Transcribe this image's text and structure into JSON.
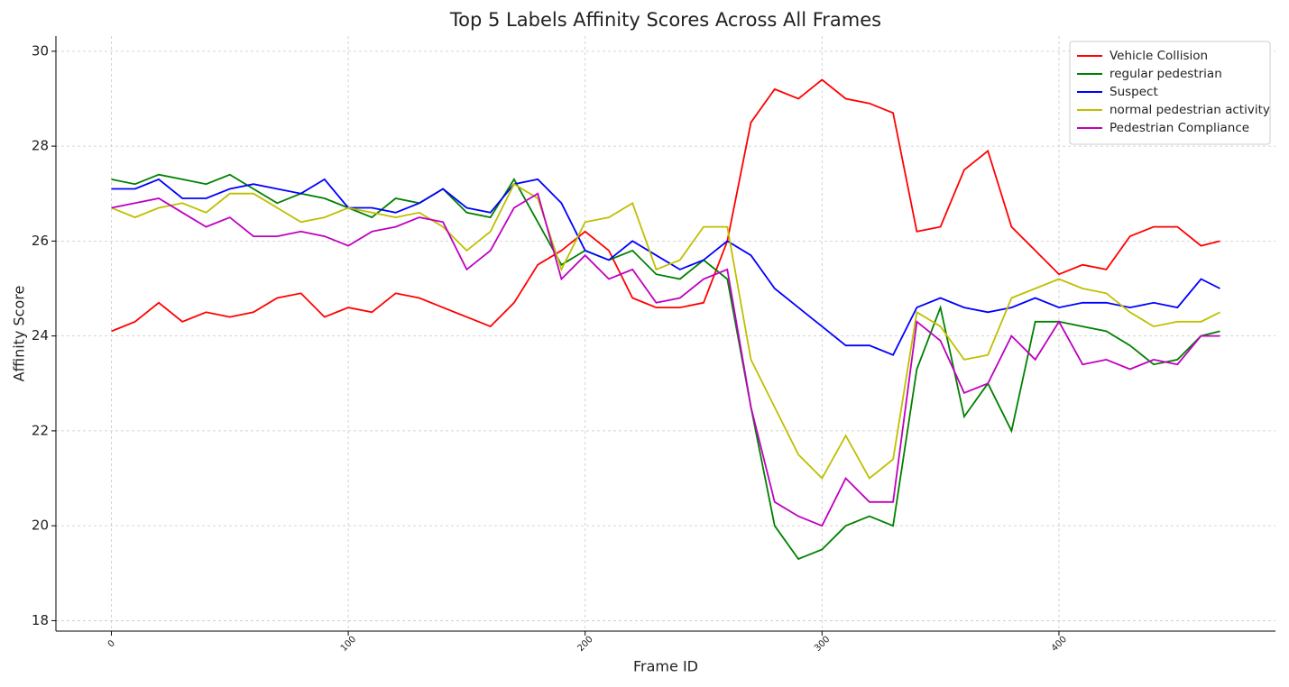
{
  "chart_data": {
    "type": "line",
    "title": "Top 5 Labels Affinity Scores Across All Frames",
    "x_label": "Frame ID",
    "y_label": "Affinity Score",
    "x": [
      0,
      10,
      20,
      30,
      40,
      50,
      60,
      70,
      80,
      90,
      100,
      110,
      120,
      130,
      140,
      150,
      160,
      170,
      180,
      190,
      200,
      210,
      220,
      230,
      240,
      250,
      260,
      270,
      280,
      290,
      300,
      310,
      320,
      330,
      340,
      350,
      360,
      370,
      380,
      390,
      400,
      410,
      420,
      430,
      440,
      450,
      460,
      468
    ],
    "series": [
      {
        "name": "Vehicle Collision",
        "color": "#ff0000",
        "values": [
          24.1,
          24.3,
          24.7,
          24.3,
          24.5,
          24.4,
          24.5,
          24.8,
          24.9,
          24.4,
          24.6,
          24.5,
          24.9,
          24.8,
          24.6,
          24.4,
          24.2,
          24.7,
          25.5,
          25.8,
          26.2,
          25.8,
          24.8,
          24.6,
          24.6,
          24.7,
          26.0,
          28.5,
          29.2,
          29.0,
          29.4,
          29.0,
          28.9,
          28.7,
          26.2,
          26.3,
          27.5,
          27.9,
          26.3,
          25.8,
          25.3,
          25.5,
          25.4,
          26.1,
          26.3,
          26.3,
          25.9,
          26.0
        ]
      },
      {
        "name": "regular pedestrian",
        "color": "#008000",
        "values": [
          27.3,
          27.2,
          27.4,
          27.3,
          27.2,
          27.4,
          27.1,
          26.8,
          27.0,
          26.9,
          26.7,
          26.5,
          26.9,
          26.8,
          27.1,
          26.6,
          26.5,
          27.3,
          26.4,
          25.5,
          25.8,
          25.6,
          25.8,
          25.3,
          25.2,
          25.6,
          25.2,
          22.5,
          20.0,
          19.3,
          19.5,
          20.0,
          20.2,
          20.0,
          23.3,
          24.6,
          22.3,
          23.0,
          22.0,
          24.3,
          24.3,
          24.2,
          24.1,
          23.8,
          23.4,
          23.5,
          24.0,
          24.1
        ]
      },
      {
        "name": "Suspect",
        "color": "#0000ff",
        "values": [
          27.1,
          27.1,
          27.3,
          26.9,
          26.9,
          27.1,
          27.2,
          27.1,
          27.0,
          27.3,
          26.7,
          26.7,
          26.6,
          26.8,
          27.1,
          26.7,
          26.6,
          27.2,
          27.3,
          26.8,
          25.8,
          25.6,
          26.0,
          25.7,
          25.4,
          25.6,
          26.0,
          25.7,
          25.0,
          24.6,
          24.2,
          23.8,
          23.8,
          23.6,
          24.6,
          24.8,
          24.6,
          24.5,
          24.6,
          24.8,
          24.6,
          24.7,
          24.7,
          24.6,
          24.7,
          24.6,
          25.2,
          25.0
        ]
      },
      {
        "name": "normal pedestrian activity",
        "color": "#bfbf00",
        "values": [
          26.7,
          26.5,
          26.7,
          26.8,
          26.6,
          27.0,
          27.0,
          26.7,
          26.4,
          26.5,
          26.7,
          26.6,
          26.5,
          26.6,
          26.3,
          25.8,
          26.2,
          27.2,
          26.9,
          25.4,
          26.4,
          26.5,
          26.8,
          25.4,
          25.6,
          26.3,
          26.3,
          23.5,
          22.5,
          21.5,
          21.0,
          21.9,
          21.0,
          21.4,
          24.5,
          24.2,
          23.5,
          23.6,
          24.8,
          25.0,
          25.2,
          25.0,
          24.9,
          24.5,
          24.2,
          24.3,
          24.3,
          24.5
        ]
      },
      {
        "name": "Pedestrian Compliance",
        "color": "#bf00bf",
        "values": [
          26.7,
          26.8,
          26.9,
          26.6,
          26.3,
          26.5,
          26.1,
          26.1,
          26.2,
          26.1,
          25.9,
          26.2,
          26.3,
          26.5,
          26.4,
          25.4,
          25.8,
          26.7,
          27.0,
          25.2,
          25.7,
          25.2,
          25.4,
          24.7,
          24.8,
          25.2,
          25.4,
          22.5,
          20.5,
          20.2,
          20.0,
          21.0,
          20.5,
          20.5,
          24.3,
          23.9,
          22.8,
          23.0,
          24.0,
          23.5,
          24.3,
          23.4,
          23.5,
          23.3,
          23.5,
          23.4,
          24.0,
          24.0
        ]
      }
    ],
    "xlim": [
      -23.4,
      491.4
    ],
    "ylim": [
      17.78,
      30.32
    ],
    "xticks": [
      0,
      100,
      200,
      300,
      400
    ],
    "yticks": [
      18,
      20,
      22,
      24,
      26,
      28,
      30
    ],
    "grid": true,
    "legend": "upper right"
  }
}
